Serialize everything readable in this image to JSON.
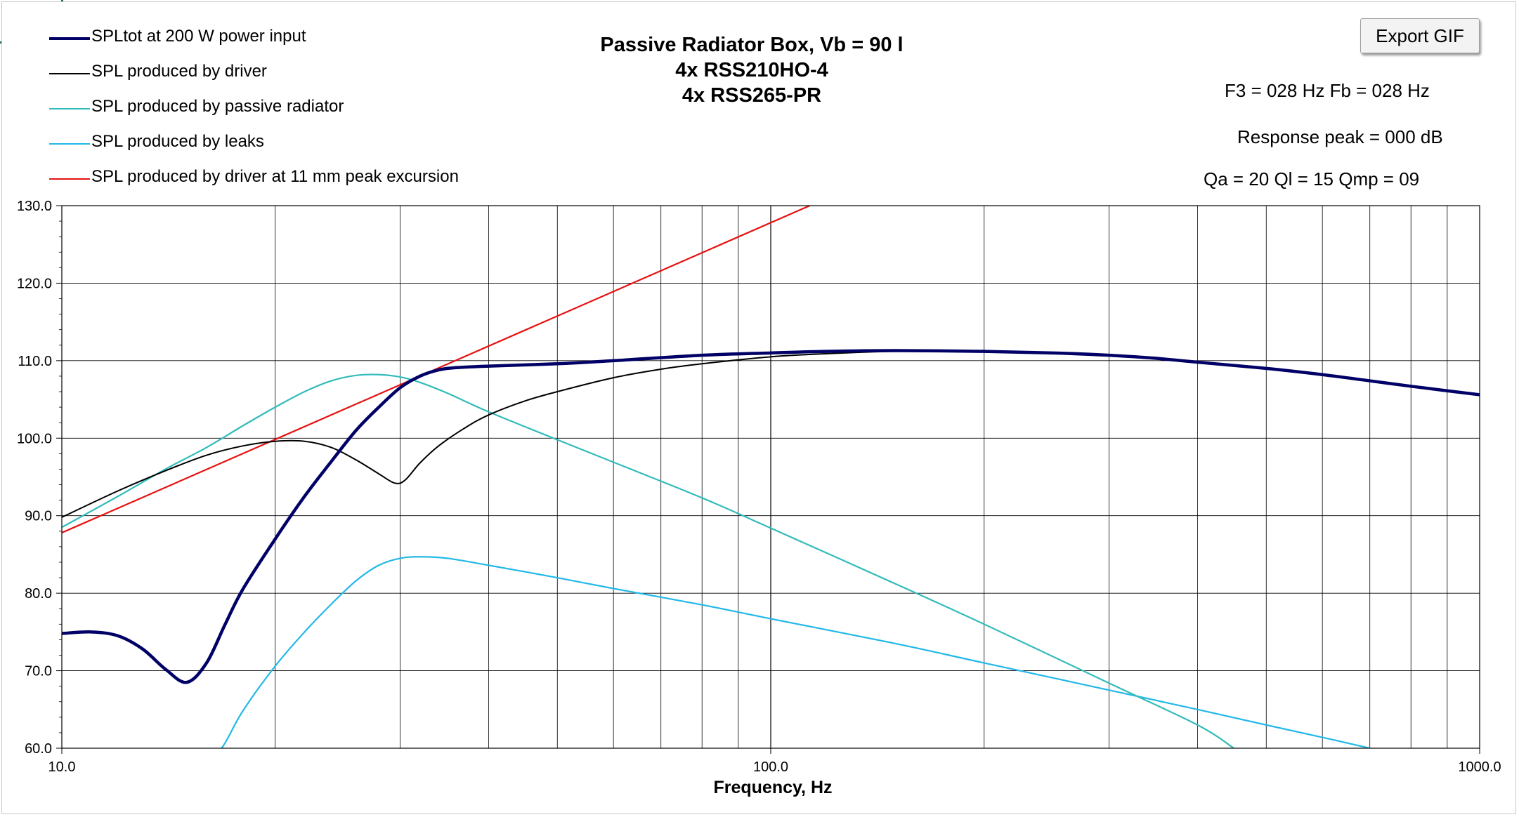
{
  "toolbar": {
    "export_label": "Export GIF"
  },
  "info": {
    "f3_fb": "F3 = 028 Hz  Fb = 028 Hz",
    "response_peak": "Response peak = 000 dB",
    "q_values": "Qa = 20  Ql = 15  Qmp = 09"
  },
  "chart_data": {
    "type": "line",
    "title": [
      "Passive Radiator Box, Vb = 90 l",
      "4x RSS210HO-4",
      "4x RSS265-PR"
    ],
    "xlabel": "Frequency, Hz",
    "ylabel": "",
    "x_scale": "log",
    "xlim": [
      10,
      1000
    ],
    "ylim": [
      60,
      130
    ],
    "x_ticks": [
      "10.0",
      "100.0",
      "1000.0"
    ],
    "y_ticks": [
      "60.0",
      "70.0",
      "80.0",
      "90.0",
      "100.0",
      "110.0",
      "120.0",
      "130.0"
    ],
    "grid": true,
    "legend_position": "top-left",
    "series": [
      {
        "name": "SPLtot at 200 W power input",
        "color": "#000066",
        "points": [
          [
            10,
            74.8
          ],
          [
            11,
            75.0
          ],
          [
            12,
            74.5
          ],
          [
            13,
            72.8
          ],
          [
            14,
            70.2
          ],
          [
            15,
            68.5
          ],
          [
            16,
            71.0
          ],
          [
            17,
            76.0
          ],
          [
            18,
            80.5
          ],
          [
            20,
            87.0
          ],
          [
            22,
            92.5
          ],
          [
            24,
            97.0
          ],
          [
            26,
            101.0
          ],
          [
            28,
            104.0
          ],
          [
            30,
            106.5
          ],
          [
            32,
            108.0
          ],
          [
            34,
            108.8
          ],
          [
            36,
            109.1
          ],
          [
            40,
            109.3
          ],
          [
            50,
            109.6
          ],
          [
            60,
            110.0
          ],
          [
            80,
            110.7
          ],
          [
            100,
            111.0
          ],
          [
            120,
            111.2
          ],
          [
            150,
            111.3
          ],
          [
            200,
            111.2
          ],
          [
            250,
            111.0
          ],
          [
            300,
            110.7
          ],
          [
            350,
            110.3
          ],
          [
            400,
            109.8
          ],
          [
            500,
            109.0
          ],
          [
            600,
            108.2
          ],
          [
            700,
            107.4
          ],
          [
            800,
            106.7
          ],
          [
            1000,
            105.6
          ]
        ]
      },
      {
        "name": "SPL produced by driver",
        "color": "#000000",
        "points": [
          [
            10,
            89.8
          ],
          [
            12,
            93.2
          ],
          [
            14,
            95.8
          ],
          [
            16,
            97.8
          ],
          [
            18,
            99.0
          ],
          [
            20,
            99.6
          ],
          [
            22,
            99.6
          ],
          [
            24,
            98.8
          ],
          [
            26,
            97.2
          ],
          [
            28,
            95.4
          ],
          [
            29.5,
            94.2
          ],
          [
            30.5,
            94.6
          ],
          [
            32,
            96.8
          ],
          [
            34,
            99.0
          ],
          [
            37,
            101.3
          ],
          [
            40,
            103.0
          ],
          [
            45,
            104.8
          ],
          [
            50,
            106.0
          ],
          [
            60,
            107.8
          ],
          [
            70,
            108.9
          ],
          [
            80,
            109.6
          ],
          [
            100,
            110.5
          ],
          [
            120,
            110.9
          ],
          [
            150,
            111.2
          ],
          [
            200,
            111.2
          ],
          [
            250,
            111.0
          ],
          [
            300,
            110.7
          ],
          [
            400,
            109.8
          ],
          [
            500,
            109.0
          ],
          [
            700,
            107.4
          ],
          [
            1000,
            105.6
          ]
        ]
      },
      {
        "name": "SPL produced by passive radiator",
        "color": "#33BBBB",
        "points": [
          [
            10,
            88.5
          ],
          [
            12,
            92.5
          ],
          [
            14,
            96.0
          ],
          [
            16,
            98.8
          ],
          [
            18,
            101.6
          ],
          [
            20,
            104.0
          ],
          [
            22,
            106.0
          ],
          [
            24,
            107.4
          ],
          [
            26,
            108.1
          ],
          [
            28,
            108.2
          ],
          [
            30,
            107.9
          ],
          [
            32,
            107.2
          ],
          [
            35,
            105.8
          ],
          [
            40,
            103.4
          ],
          [
            50,
            99.8
          ],
          [
            60,
            96.9
          ],
          [
            80,
            92.3
          ],
          [
            100,
            88.4
          ],
          [
            150,
            81.2
          ],
          [
            200,
            76.0
          ],
          [
            300,
            68.4
          ],
          [
            400,
            63.0
          ],
          [
            450,
            60.0
          ]
        ]
      },
      {
        "name": "SPL produced by leaks",
        "color": "#22B8E8",
        "points": [
          [
            10,
            60.0
          ],
          [
            11,
            59.0
          ],
          [
            16,
            59.0
          ],
          [
            16.8,
            60.0
          ],
          [
            18,
            64.8
          ],
          [
            20,
            70.6
          ],
          [
            22,
            75.0
          ],
          [
            24,
            78.6
          ],
          [
            26,
            81.6
          ],
          [
            28,
            83.6
          ],
          [
            30,
            84.5
          ],
          [
            32,
            84.7
          ],
          [
            35,
            84.5
          ],
          [
            40,
            83.6
          ],
          [
            50,
            82.0
          ],
          [
            60,
            80.6
          ],
          [
            80,
            78.5
          ],
          [
            100,
            76.7
          ],
          [
            150,
            73.5
          ],
          [
            200,
            71.0
          ],
          [
            300,
            67.5
          ],
          [
            400,
            65.0
          ],
          [
            500,
            63.0
          ],
          [
            600,
            61.4
          ],
          [
            700,
            60.0
          ]
        ]
      },
      {
        "name": "SPL produced by driver at 11 mm peak excursion",
        "color": "#E81010",
        "points": [
          [
            10,
            87.8
          ],
          [
            113.5,
            130
          ]
        ]
      }
    ]
  }
}
